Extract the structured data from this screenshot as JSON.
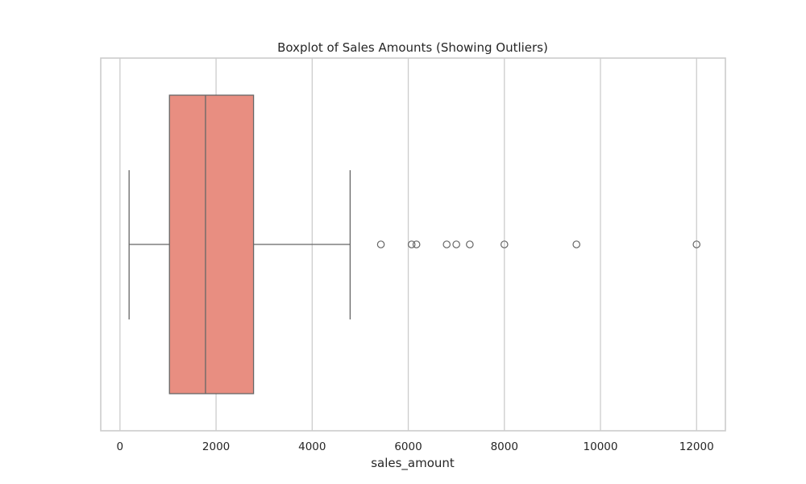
{
  "chart_data": {
    "type": "boxplot",
    "title": "Boxplot of Sales Amounts (Showing Outliers)",
    "xlabel": "sales_amount",
    "ylabel": "",
    "orientation": "horizontal",
    "xlim": [
      -400,
      12600
    ],
    "xticks": [
      0,
      2000,
      4000,
      6000,
      8000,
      10000,
      12000
    ],
    "xtick_labels": [
      "0",
      "2000",
      "4000",
      "6000",
      "8000",
      "10000",
      "12000"
    ],
    "grid": "vertical",
    "box": {
      "whisker_low": 190,
      "q1": 1030,
      "median": 1780,
      "q3": 2780,
      "whisker_high": 4790
    },
    "outliers": [
      5430,
      6070,
      6170,
      6800,
      7000,
      7280,
      8000,
      9500,
      12000
    ],
    "colors": {
      "box_fill": "#e88e81",
      "line": "#666666",
      "grid": "#cccccc",
      "frame": "#cccccc",
      "text": "#262626"
    }
  }
}
